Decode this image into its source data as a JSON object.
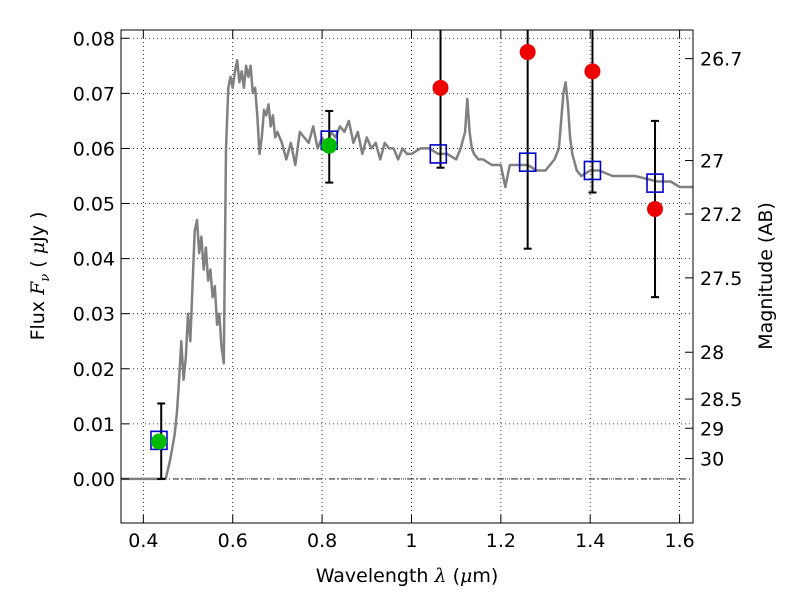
{
  "chart_data": {
    "type": "scatter",
    "xlabel": "Wavelength",
    "xlabel_symbol": "λ",
    "xlabel_unit_open": " (",
    "xlabel_unit_mu": "μ",
    "xlabel_unit_rest": "m)",
    "ylabel": "Flux",
    "ylabel_symbol": "F",
    "ylabel_subscript": "ν",
    "ylabel_unit_open": " ( ",
    "ylabel_unit_mu": "μ",
    "ylabel_unit_rest": "Jy )",
    "y2label": "Magnitude (AB)",
    "xlim": [
      0.35,
      1.63
    ],
    "ylim": [
      -0.008,
      0.0815
    ],
    "grid": true,
    "xticks": [
      0.4,
      0.6,
      0.8,
      1.0,
      1.2,
      1.4,
      1.6
    ],
    "xtick_labels": [
      "0.4",
      "0.6",
      "0.8",
      "1",
      "1.2",
      "1.4",
      "1.6"
    ],
    "yticks": [
      0.0,
      0.01,
      0.02,
      0.03,
      0.04,
      0.05,
      0.06,
      0.07,
      0.08
    ],
    "ytick_labels": [
      "0.00",
      "0.01",
      "0.02",
      "0.03",
      "0.04",
      "0.05",
      "0.06",
      "0.07",
      "0.08"
    ],
    "y2ticks": [
      {
        "label": "26.7",
        "flux": 0.0763
      },
      {
        "label": "27",
        "flux": 0.0578
      },
      {
        "label": "27.2",
        "flux": 0.0481
      },
      {
        "label": "27.5",
        "flux": 0.0365
      },
      {
        "label": "28",
        "flux": 0.023
      },
      {
        "label": "28.5",
        "flux": 0.0145
      },
      {
        "label": "29",
        "flux": 0.0092
      },
      {
        "label": "30",
        "flux": 0.0037
      }
    ],
    "zero_line": 0.0,
    "series": [
      {
        "kind": "line",
        "color": "#808080",
        "x": [
          0.35,
          0.4,
          0.43,
          0.44,
          0.45,
          0.46,
          0.47,
          0.475,
          0.48,
          0.485,
          0.49,
          0.495,
          0.5,
          0.505,
          0.51,
          0.515,
          0.52,
          0.525,
          0.53,
          0.535,
          0.54,
          0.545,
          0.55,
          0.555,
          0.56,
          0.565,
          0.57,
          0.575,
          0.58,
          0.585,
          0.59,
          0.595,
          0.6,
          0.605,
          0.61,
          0.615,
          0.62,
          0.625,
          0.63,
          0.635,
          0.64,
          0.645,
          0.65,
          0.655,
          0.66,
          0.665,
          0.67,
          0.675,
          0.68,
          0.685,
          0.69,
          0.695,
          0.7,
          0.71,
          0.72,
          0.73,
          0.74,
          0.75,
          0.76,
          0.77,
          0.78,
          0.79,
          0.8,
          0.81,
          0.82,
          0.83,
          0.84,
          0.85,
          0.86,
          0.87,
          0.88,
          0.89,
          0.9,
          0.91,
          0.92,
          0.93,
          0.94,
          0.95,
          0.96,
          0.97,
          0.98,
          0.99,
          1.0,
          1.02,
          1.04,
          1.06,
          1.08,
          1.1,
          1.11,
          1.12,
          1.125,
          1.13,
          1.135,
          1.14,
          1.15,
          1.16,
          1.18,
          1.2,
          1.21,
          1.22,
          1.24,
          1.26,
          1.28,
          1.3,
          1.32,
          1.33,
          1.34,
          1.345,
          1.35,
          1.355,
          1.36,
          1.37,
          1.38,
          1.4,
          1.42,
          1.45,
          1.48,
          1.5,
          1.55,
          1.58,
          1.6,
          1.63
        ],
        "y": [
          0.0,
          0.0,
          0.0,
          0.0,
          0.0,
          0.0035,
          0.008,
          0.012,
          0.018,
          0.025,
          0.018,
          0.022,
          0.03,
          0.025,
          0.035,
          0.045,
          0.047,
          0.041,
          0.044,
          0.038,
          0.042,
          0.036,
          0.038,
          0.033,
          0.035,
          0.028,
          0.03,
          0.024,
          0.021,
          0.06,
          0.071,
          0.073,
          0.071,
          0.074,
          0.076,
          0.072,
          0.074,
          0.071,
          0.075,
          0.073,
          0.075,
          0.07,
          0.071,
          0.066,
          0.059,
          0.062,
          0.067,
          0.066,
          0.068,
          0.064,
          0.066,
          0.062,
          0.063,
          0.061,
          0.058,
          0.061,
          0.057,
          0.063,
          0.062,
          0.061,
          0.064,
          0.06,
          0.062,
          0.06,
          0.063,
          0.062,
          0.064,
          0.063,
          0.065,
          0.061,
          0.063,
          0.059,
          0.062,
          0.06,
          0.061,
          0.058,
          0.061,
          0.06,
          0.06,
          0.058,
          0.06,
          0.059,
          0.059,
          0.06,
          0.06,
          0.059,
          0.059,
          0.058,
          0.06,
          0.063,
          0.069,
          0.063,
          0.06,
          0.059,
          0.058,
          0.058,
          0.057,
          0.057,
          0.053,
          0.057,
          0.057,
          0.057,
          0.056,
          0.056,
          0.058,
          0.06,
          0.07,
          0.072,
          0.068,
          0.062,
          0.059,
          0.056,
          0.055,
          0.056,
          0.056,
          0.055,
          0.055,
          0.055,
          0.054,
          0.054,
          0.053,
          0.053
        ]
      },
      {
        "kind": "model_photometry",
        "marker": "open-square",
        "color": "#0000cc",
        "x": [
          0.435,
          0.816,
          1.06,
          1.26,
          1.405,
          1.545
        ],
        "y": [
          0.007,
          0.0615,
          0.059,
          0.0575,
          0.056,
          0.0537
        ]
      },
      {
        "kind": "detections",
        "marker": "filled-circle",
        "color": "#00bb00",
        "x": [
          0.435,
          0.816
        ],
        "y": [
          0.0068,
          0.0605
        ]
      },
      {
        "kind": "non_detections",
        "marker": "filled-circle",
        "color": "#ee0000",
        "x": [
          1.065,
          1.26,
          1.405,
          1.545
        ],
        "y": [
          0.071,
          0.0775,
          0.074,
          0.049
        ]
      },
      {
        "kind": "error_bars",
        "color": "#000000",
        "bars": [
          {
            "x": 0.44,
            "low": 0.0,
            "high": 0.0137
          },
          {
            "x": 0.816,
            "low": 0.0538,
            "high": 0.0668
          },
          {
            "x": 1.065,
            "low": 0.0565,
            "high": 0.0815
          },
          {
            "x": 1.26,
            "low": 0.0418,
            "high": 0.0815
          },
          {
            "x": 1.405,
            "low": 0.052,
            "high": 0.0815
          },
          {
            "x": 1.545,
            "low": 0.033,
            "high": 0.065
          }
        ]
      }
    ]
  }
}
